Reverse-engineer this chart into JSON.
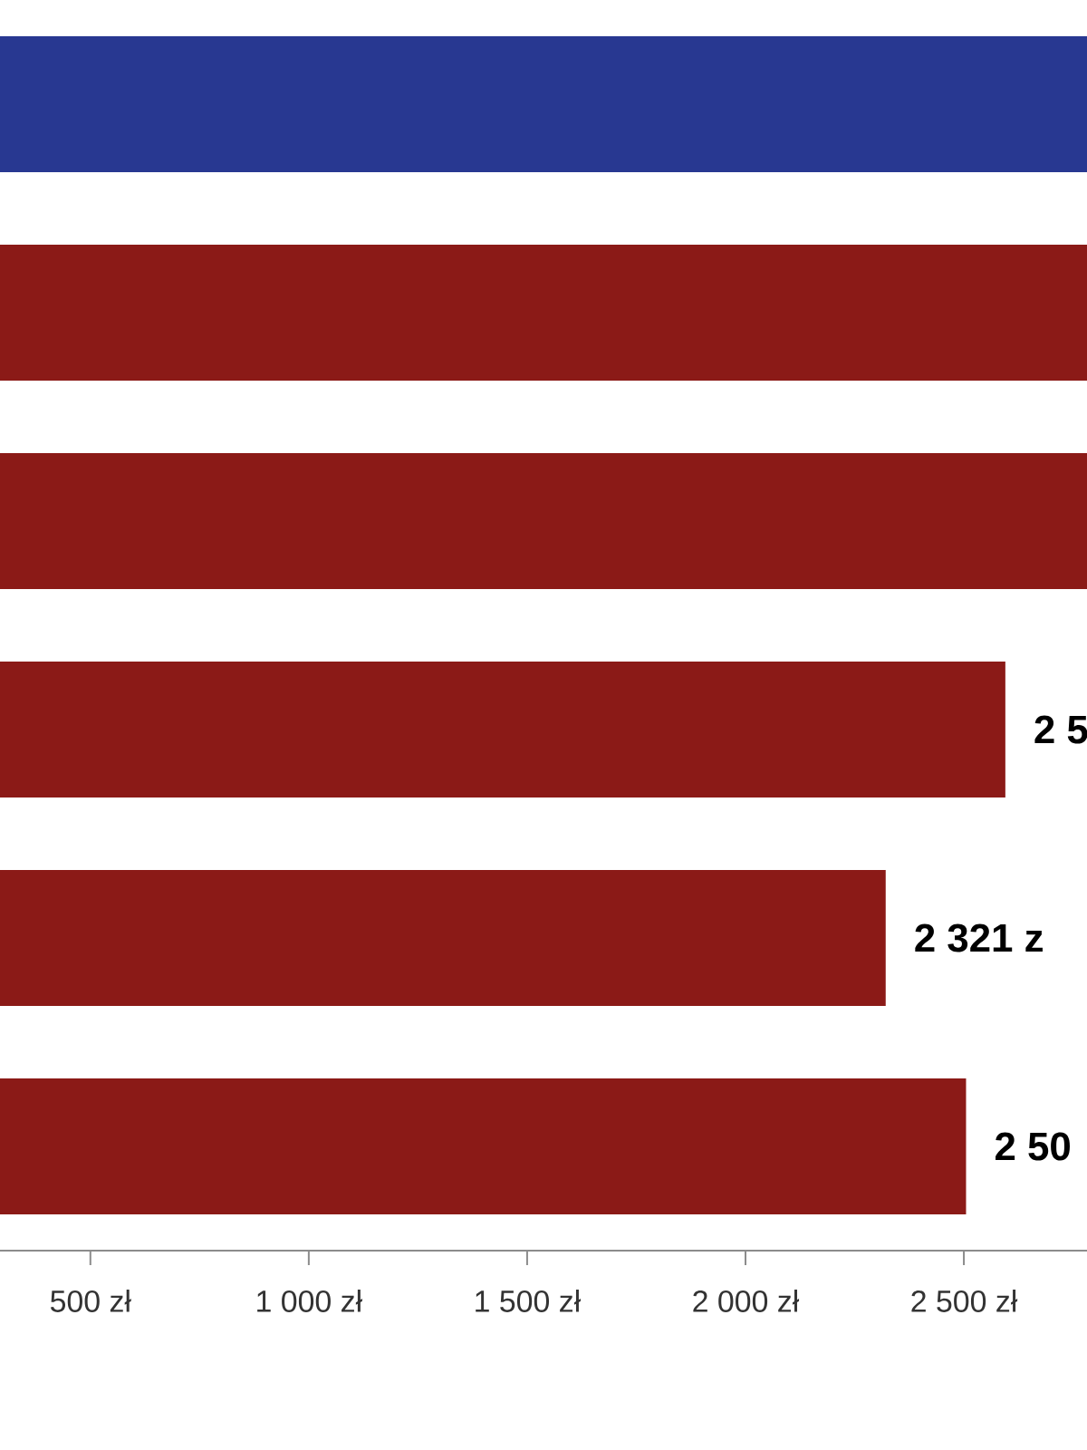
{
  "chart_data": {
    "type": "bar",
    "orientation": "horizontal",
    "categories": [
      null,
      null,
      null,
      null,
      null,
      null
    ],
    "values": [
      2782,
      2782,
      2782,
      2595,
      2321,
      2505
    ],
    "colors": [
      "#283891",
      "#8b1a17",
      "#8b1a17",
      "#8b1a17",
      "#8b1a17",
      "#8b1a17"
    ],
    "value_labels": [
      null,
      null,
      null,
      null,
      "2 321 z",
      null
    ],
    "annotations": [
      {
        "text": "2 5",
        "x": 2595
      },
      {
        "text": "2 50",
        "x": 2505
      }
    ],
    "xlim": [
      293,
      2782
    ],
    "xticks": [
      {
        "value": 500,
        "label": "500 zł"
      },
      {
        "value": 1000,
        "label": "1 000 zł"
      },
      {
        "value": 1500,
        "label": "1 500 zł"
      },
      {
        "value": 2000,
        "label": "2 000 zł"
      },
      {
        "value": 2500,
        "label": "2 500 zł"
      }
    ],
    "grid": false
  }
}
